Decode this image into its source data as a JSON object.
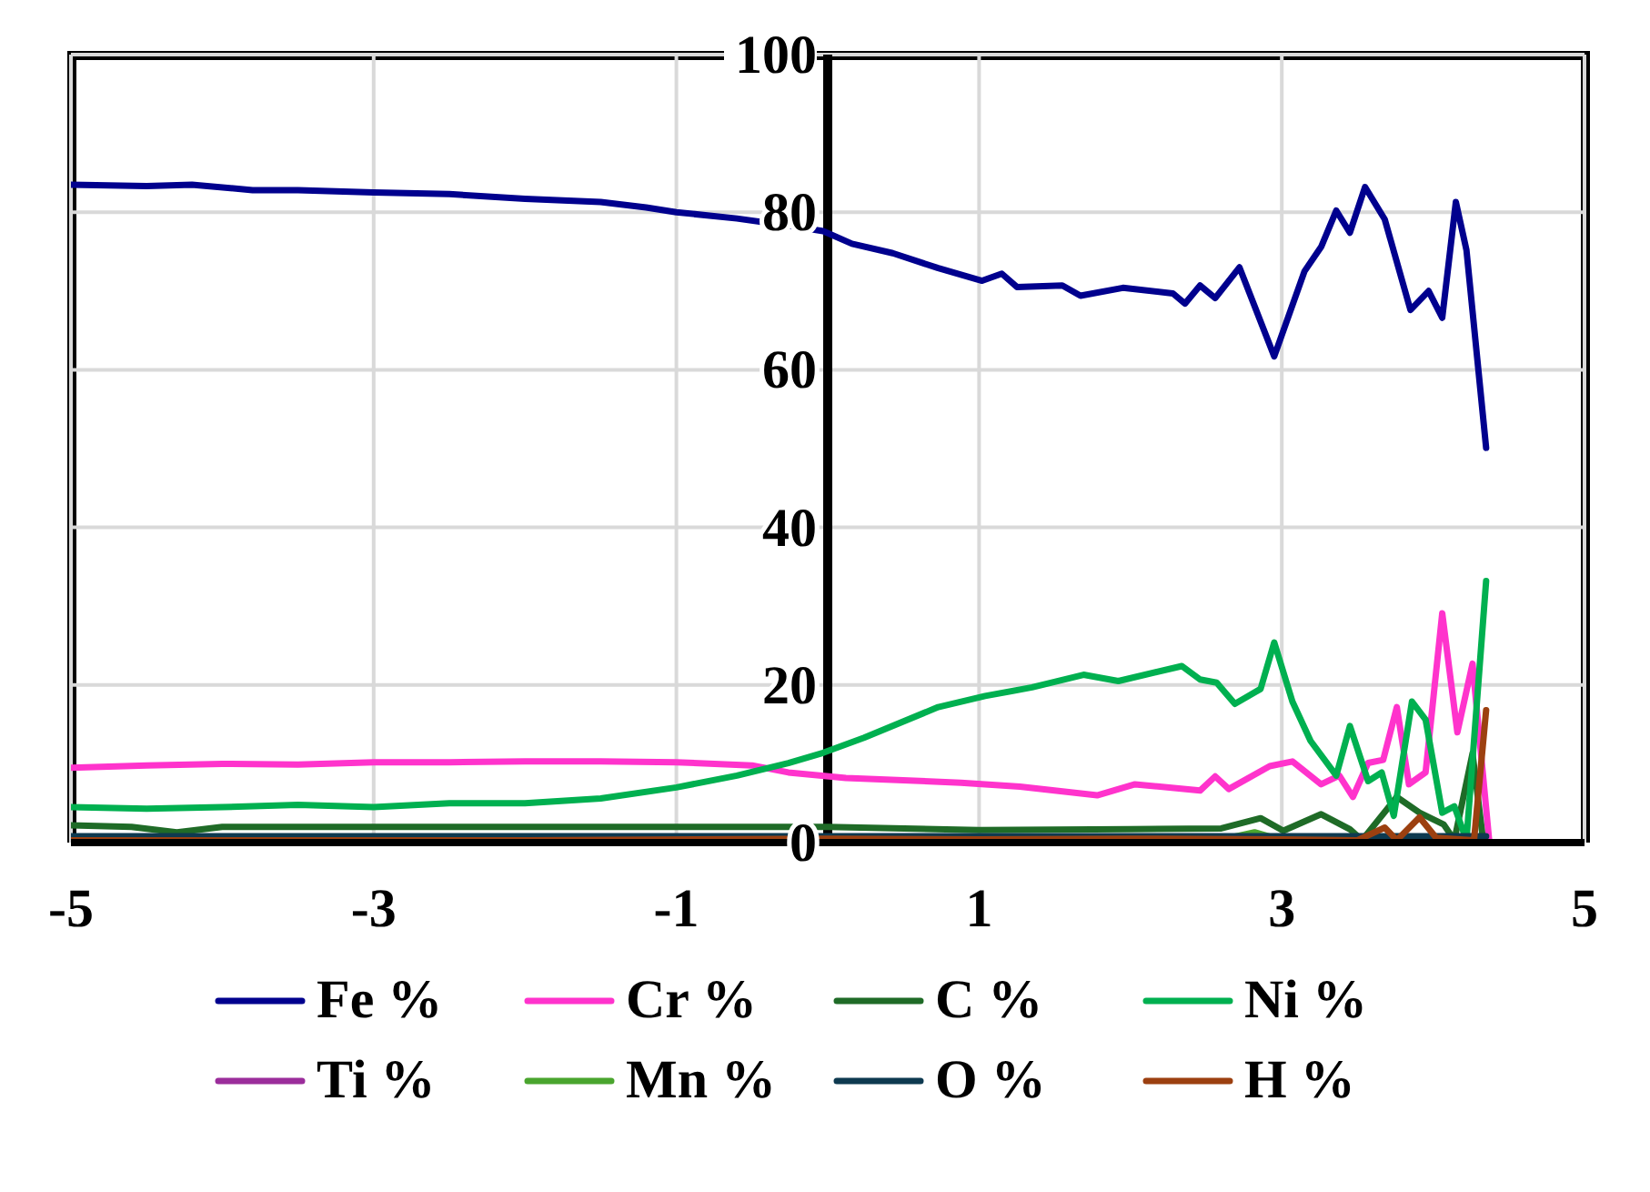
{
  "chart_data": {
    "type": "line",
    "xlim": [
      -5,
      5
    ],
    "xticks": [
      -5,
      -3,
      -1,
      1,
      3,
      5
    ],
    "ylim": [
      0,
      100
    ],
    "yticks": [
      0,
      20,
      40,
      60,
      80,
      100
    ],
    "grid": true,
    "legend": "bottom",
    "marker": "none",
    "line_style": "solid",
    "series": [
      {
        "name": "Fe %",
        "color": "#00008e",
        "x": [
          -5,
          -4.5,
          -4.2,
          -3.8,
          -3.5,
          -3,
          -2.5,
          -2,
          -1.5,
          -1.2,
          -1,
          -0.6,
          -0.26,
          -0.03,
          0.16,
          0.43,
          0.73,
          1.02,
          1.15,
          1.25,
          1.55,
          1.67,
          1.95,
          2.28,
          2.36,
          2.46,
          2.56,
          2.72,
          2.95,
          3.15,
          3.26,
          3.36,
          3.45,
          3.55,
          3.68,
          3.85,
          3.97,
          4.06,
          4.15,
          4.22,
          4.35
        ],
        "values": [
          83.5,
          83.3,
          83.5,
          82.8,
          82.8,
          82.5,
          82.3,
          81.7,
          81.3,
          80.6,
          80,
          79.2,
          78.3,
          77.6,
          76,
          74.8,
          72.9,
          71.3,
          72.2,
          70.5,
          70.7,
          69.4,
          70.4,
          69.7,
          68.4,
          70.7,
          69.1,
          73,
          61.7,
          72.5,
          75.6,
          80.2,
          77.4,
          83.2,
          79.1,
          67.6,
          70,
          66.6,
          81.3,
          75.2,
          50.1
        ]
      },
      {
        "name": "Cr %",
        "color": "#ff33cc",
        "x": [
          -5,
          -4.5,
          -4,
          -3.5,
          -3,
          -2.5,
          -2,
          -1.5,
          -1,
          -0.5,
          -0.26,
          0.12,
          0.88,
          1.27,
          1.78,
          2.03,
          2.46,
          2.56,
          2.65,
          2.92,
          3.07,
          3.26,
          3.38,
          3.47,
          3.57,
          3.67,
          3.76,
          3.84,
          3.95,
          4.06,
          4.16,
          4.26,
          4.37
        ],
        "values": [
          9.5,
          9.8,
          10,
          9.9,
          10.2,
          10.2,
          10.3,
          10.3,
          10.2,
          9.8,
          8.9,
          8.2,
          7.6,
          7.1,
          6,
          7.4,
          6.6,
          8.4,
          6.8,
          9.7,
          10.3,
          7.4,
          8.5,
          5.8,
          10.1,
          10.5,
          17.2,
          7.4,
          8.9,
          29.1,
          14,
          22.7,
          0.3
        ]
      },
      {
        "name": "C %",
        "color": "#1f6b27",
        "x": [
          -5,
          -4.6,
          -4.3,
          -4,
          -3,
          -2,
          -1,
          0,
          1,
          2,
          2.6,
          2.86,
          3.01,
          3.26,
          3.45,
          3.53,
          3.76,
          3.91,
          4.07,
          4.14,
          4.26,
          4.33
        ],
        "values": [
          2.2,
          2,
          1.3,
          2,
          2,
          2,
          2,
          2,
          1.6,
          1.7,
          1.8,
          3.1,
          1.5,
          3.6,
          1.7,
          0.3,
          5.8,
          3.8,
          2.3,
          0.3,
          11.3,
          0.3
        ]
      },
      {
        "name": "Ni %",
        "color": "#00b050",
        "x": [
          -5,
          -4.5,
          -4,
          -3.5,
          -3,
          -2.5,
          -2,
          -1.5,
          -1,
          -0.6,
          -0.26,
          -0.03,
          0.24,
          0.73,
          1.04,
          1.35,
          1.69,
          1.92,
          2.34,
          2.46,
          2.57,
          2.69,
          2.86,
          2.95,
          3.07,
          3.19,
          3.36,
          3.45,
          3.57,
          3.66,
          3.74,
          3.86,
          3.95,
          4.06,
          4.14,
          4.22,
          4.35
        ],
        "values": [
          4.5,
          4.3,
          4.5,
          4.8,
          4.5,
          5,
          5,
          5.6,
          7,
          8.5,
          10.1,
          11.4,
          13.3,
          17.2,
          18.6,
          19.7,
          21.3,
          20.5,
          22.4,
          20.7,
          20.3,
          17.6,
          19.5,
          25.4,
          17.9,
          12.9,
          8.5,
          14.8,
          7.8,
          8.9,
          3.4,
          17.9,
          15.6,
          3.8,
          4.6,
          0.3,
          33.2
        ]
      },
      {
        "name": "Ti %",
        "color": "#9b2d9b"
      },
      {
        "name": "Mn %",
        "color": "#4aa52e",
        "x": [
          2.65,
          2.82,
          2.95
        ],
        "values": [
          0.6,
          1.3,
          0.6
        ]
      },
      {
        "name": "O %",
        "color": "#0e3a50",
        "x": [
          -5,
          0,
          2,
          3,
          4,
          4.35
        ],
        "values": [
          0.8,
          0.8,
          0.8,
          0.8,
          0.8,
          0.8
        ]
      },
      {
        "name": "H %",
        "color": "#9c4010",
        "x": [
          -5,
          -2,
          0,
          1,
          2,
          3,
          3.5,
          3.68,
          3.76,
          3.91,
          4.02,
          4.27,
          4.35
        ],
        "values": [
          0.3,
          0.3,
          0.5,
          0.4,
          0.5,
          0.4,
          0.3,
          1.9,
          0.3,
          3.2,
          0.6,
          0.3,
          16.8
        ]
      }
    ]
  }
}
